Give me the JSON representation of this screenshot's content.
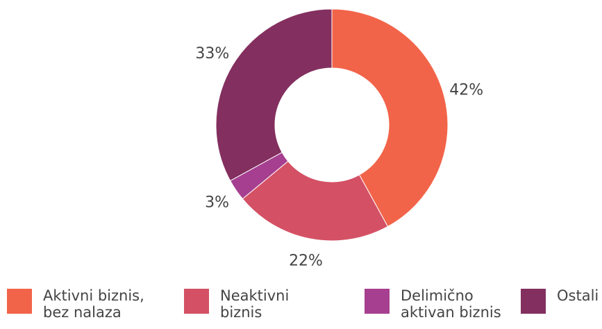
{
  "chart_data": {
    "type": "donut",
    "categories": [
      "Aktivni biznis, bez nalaza",
      "Neaktivni biznis",
      "Delimično aktivan biznis",
      "Ostali nalazi"
    ],
    "values": [
      42,
      22,
      3,
      33
    ],
    "value_labels": [
      "42%",
      "22%",
      "3%",
      "33%"
    ],
    "colors": [
      "#f26449",
      "#d45165",
      "#a63f90",
      "#832f5f"
    ],
    "legend": "bottom"
  }
}
